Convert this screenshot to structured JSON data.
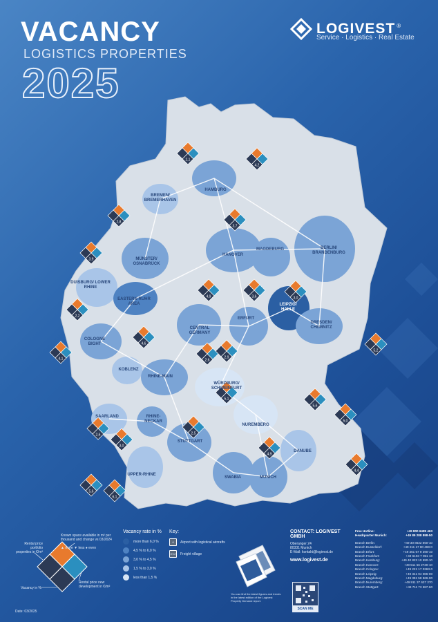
{
  "header": {
    "title": "VACANCY",
    "subtitle": "LOGISTICS PROPERTIES",
    "year": "2025"
  },
  "logo": {
    "name": "LOGIVEST",
    "trademark": "®",
    "tagline": "Service · Logistics · Real Estate"
  },
  "regions": [
    {
      "name": "HAMBURG"
    },
    {
      "name": "BREMEN/ BREMERHAVEN"
    },
    {
      "name": "HANOVER"
    },
    {
      "name": "MAGDEBURG"
    },
    {
      "name": "BERLIN/ BRANDENBURG"
    },
    {
      "name": "MÜNSTER/ OSNABRÜCK"
    },
    {
      "name": "DUISBURG/ LOWER RHINE"
    },
    {
      "name": "EASTERN RUHR AREA"
    },
    {
      "name": "LEIPZIG/ HALLE"
    },
    {
      "name": "ERFURT"
    },
    {
      "name": "DRESDEN/ CHEMNITZ"
    },
    {
      "name": "CENTRAL GERMANY"
    },
    {
      "name": "COLOGNE BIGHT"
    },
    {
      "name": "KOBLENZ"
    },
    {
      "name": "RHINE-MAIN"
    },
    {
      "name": "WÜRZBURG/ SCHWEINFURT"
    },
    {
      "name": "SAARLAND"
    },
    {
      "name": "RHINE-NECKAR"
    },
    {
      "name": "NUREMBERG"
    },
    {
      "name": "STUTTGART"
    },
    {
      "name": "DANUBE"
    },
    {
      "name": "SWABIA"
    },
    {
      "name": "MUNICH"
    },
    {
      "name": "UPPER-RHINE"
    }
  ],
  "map_markers": [
    "2,1",
    "4,2",
    "2,8",
    "3,7",
    "3,9",
    "2,2",
    "4,1",
    "4,6",
    "4,9",
    "3,6",
    "3,0",
    "2,9",
    "2,6",
    "5,2",
    "2,5",
    "4,9",
    "2,6",
    "3,0",
    "5,6",
    "5,0",
    "4,4",
    "5,6",
    "6,1",
    "5,1"
  ],
  "legend_diamond": {
    "top": "Known space available in m² per thousand and change vs 03/2024",
    "top_symbols": "▲ more  ▼ less  ● even",
    "left": "Rental price portfolio properties in €/m²",
    "right": "Rental price new development in €/m²",
    "bottom": "Vacancy in %"
  },
  "vacancy_rate": {
    "heading": "Vacancy rate in %",
    "rows": [
      {
        "label": "more than 6,0 %",
        "color": "#2b5fa3"
      },
      {
        "label": "4,5 % to 6,0 %",
        "color": "#4e82c2"
      },
      {
        "label": "3,0 % to 4,5 %",
        "color": "#7ba4d6"
      },
      {
        "label": "1,5 % to 3,0 %",
        "color": "#a9c5e8"
      },
      {
        "label": "less than 1,5 %",
        "color": "#d7e5f5"
      }
    ]
  },
  "key": {
    "heading": "Key:",
    "rows": [
      {
        "badge": "✈",
        "label": "Airport with logistical aircrafts"
      },
      {
        "badge": "GVZ",
        "label": "Freight village"
      }
    ]
  },
  "brochure_note": "You can find the latest figures and trends in the latest edition of the Logivest Property Demand report.",
  "contact": {
    "heading": "CONTACT: LOGIVEST GMBH",
    "lines": [
      "Oberanger 24",
      "80331 Munich",
      "E-Mail: kontakt@logivest.de"
    ],
    "website": "www.logivest.de",
    "scan_label": "SCAN ME"
  },
  "phones": [
    {
      "label": "Free Hotline:",
      "number": "+49 800 6489 463",
      "bold": true
    },
    {
      "label": "Headquarter Munich:",
      "number": "+49 89 288 898-50",
      "bold": true
    },
    {
      "label": "",
      "number": ""
    },
    {
      "label": "Branch Berlin:",
      "number": "+49 30 8632 850-10"
    },
    {
      "label": "Branch Dusseldorf:",
      "number": "+49 211 17 80 469-0"
    },
    {
      "label": "Branch Erfurt:",
      "number": "+49 361 67 9 390-10"
    },
    {
      "label": "Branch Frankfurt:",
      "number": "+49 6103 7 051 10"
    },
    {
      "label": "Branch Hamburg:",
      "number": "+49 40 823 10 690-10"
    },
    {
      "label": "Branch Hanover:",
      "number": "+49 511 56 2730-10"
    },
    {
      "label": "Branch Cologne:",
      "number": "+49 221 17 0363-0"
    },
    {
      "label": "Branch Leipzig:",
      "number": "+49 341 94 086-00"
    },
    {
      "label": "Branch Magdeburg:",
      "number": "+49 391 58 869-00"
    },
    {
      "label": "Branch Nuremberg:",
      "number": "+49 911 37 637 270"
    },
    {
      "label": "Branch Stuttgart:",
      "number": "+49 711 73 587-60"
    }
  ],
  "date": "Date: 03/2025",
  "colors": {
    "orange": "#e87a2d",
    "navy": "#2c3a55",
    "teal": "#2b8fbf",
    "map_base": "#d9e0e8"
  }
}
